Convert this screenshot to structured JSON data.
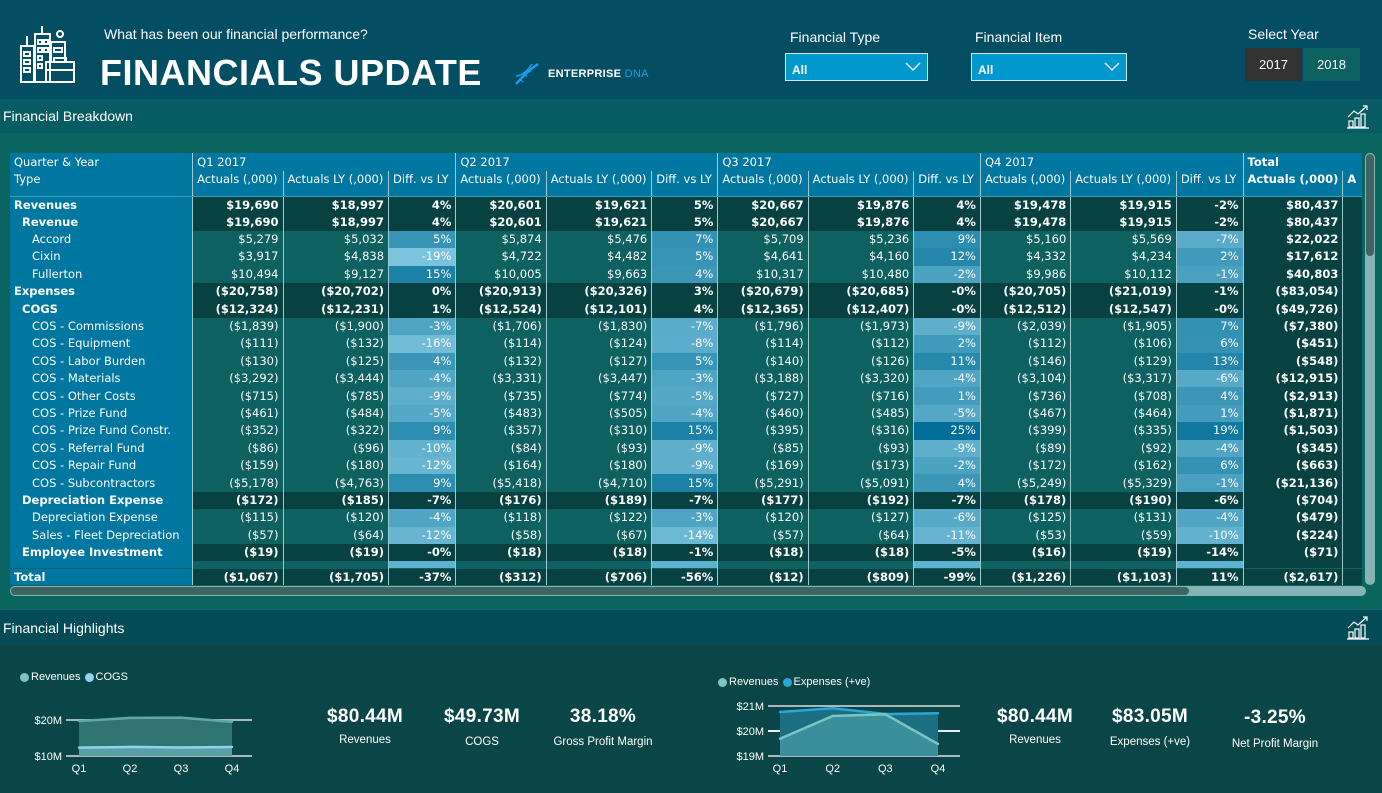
{
  "header": {
    "subtitle": "What has been our financial performance?",
    "title": "FINANCIALS UPDATE",
    "brand_main": "ENTERPRISE",
    "brand_accent": "DNA",
    "logo_icon": "city-buildings-briefcase-icon",
    "brand_icon": "dna-helix-icon"
  },
  "filters": {
    "financial_type": {
      "label": "Financial Type",
      "value": "All"
    },
    "financial_item": {
      "label": "Financial Item",
      "value": "All"
    },
    "year": {
      "label": "Select Year",
      "options": [
        "2017",
        "2018"
      ],
      "selected": "2017"
    }
  },
  "colors": {
    "header_bg": "#034e63",
    "section_bar": "#075b62",
    "table_header": "#0077a0",
    "bold_row": "#084142",
    "detail_row": "#0d6160",
    "selected_year": "#333333",
    "unselected_year": "#0d6160",
    "dropdown": "#0098cd",
    "revenues_series": "#7fc4c0",
    "cogs_series": "#8fd3ec",
    "expenses_series": "#29a8d8"
  },
  "breakdown": {
    "section_title": "Financial Breakdown",
    "row_header_top": "Quarter & Year",
    "row_header_bottom": "Type",
    "quarters": [
      "Q1 2017",
      "Q2 2017",
      "Q3 2017",
      "Q4 2017"
    ],
    "total_label": "Total",
    "measures": [
      "Actuals (,000)",
      "Actuals LY (,000)",
      "Diff. vs LY"
    ],
    "total_measure": "Actuals (,000)",
    "total_next_measure_partial": "A",
    "rows": [
      {
        "name": "Revenues",
        "level": 0,
        "q": [
          [
            "$19,690",
            "$18,997",
            "4%"
          ],
          [
            "$20,601",
            "$19,621",
            "5%"
          ],
          [
            "$20,667",
            "$19,876",
            "4%"
          ],
          [
            "$19,478",
            "$19,915",
            "-2%"
          ]
        ],
        "total": "$80,437"
      },
      {
        "name": "Revenue",
        "level": 1,
        "q": [
          [
            "$19,690",
            "$18,997",
            "4%"
          ],
          [
            "$20,601",
            "$19,621",
            "5%"
          ],
          [
            "$20,667",
            "$19,876",
            "4%"
          ],
          [
            "$19,478",
            "$19,915",
            "-2%"
          ]
        ],
        "total": "$80,437"
      },
      {
        "name": "Accord",
        "level": 2,
        "q": [
          [
            "$5,279",
            "$5,032",
            "5%"
          ],
          [
            "$5,874",
            "$5,476",
            "7%"
          ],
          [
            "$5,709",
            "$5,236",
            "9%"
          ],
          [
            "$5,160",
            "$5,569",
            "-7%"
          ]
        ],
        "total": "$22,022"
      },
      {
        "name": "Cixin",
        "level": 2,
        "q": [
          [
            "$3,917",
            "$4,838",
            "-19%"
          ],
          [
            "$4,722",
            "$4,482",
            "5%"
          ],
          [
            "$4,641",
            "$4,160",
            "12%"
          ],
          [
            "$4,332",
            "$4,234",
            "2%"
          ]
        ],
        "total": "$17,612"
      },
      {
        "name": "Fullerton",
        "level": 2,
        "q": [
          [
            "$10,494",
            "$9,127",
            "15%"
          ],
          [
            "$10,005",
            "$9,663",
            "4%"
          ],
          [
            "$10,317",
            "$10,480",
            "-2%"
          ],
          [
            "$9,986",
            "$10,112",
            "-1%"
          ]
        ],
        "total": "$40,803"
      },
      {
        "name": "Expenses",
        "level": 0,
        "q": [
          [
            "($20,758)",
            "($20,702)",
            "0%"
          ],
          [
            "($20,913)",
            "($20,326)",
            "3%"
          ],
          [
            "($20,679)",
            "($20,685)",
            "-0%"
          ],
          [
            "($20,705)",
            "($21,019)",
            "-1%"
          ]
        ],
        "total": "($83,054)"
      },
      {
        "name": "COGS",
        "level": 1,
        "q": [
          [
            "($12,324)",
            "($12,231)",
            "1%"
          ],
          [
            "($12,524)",
            "($12,101)",
            "4%"
          ],
          [
            "($12,365)",
            "($12,407)",
            "-0%"
          ],
          [
            "($12,512)",
            "($12,547)",
            "-0%"
          ]
        ],
        "total": "($49,726)"
      },
      {
        "name": "COS - Commissions",
        "level": 2,
        "q": [
          [
            "($1,839)",
            "($1,900)",
            "-3%"
          ],
          [
            "($1,706)",
            "($1,830)",
            "-7%"
          ],
          [
            "($1,796)",
            "($1,973)",
            "-9%"
          ],
          [
            "($2,039)",
            "($1,905)",
            "7%"
          ]
        ],
        "total": "($7,380)"
      },
      {
        "name": "COS - Equipment",
        "level": 2,
        "q": [
          [
            "($111)",
            "($132)",
            "-16%"
          ],
          [
            "($114)",
            "($124)",
            "-8%"
          ],
          [
            "($114)",
            "($112)",
            "2%"
          ],
          [
            "($112)",
            "($106)",
            "6%"
          ]
        ],
        "total": "($451)"
      },
      {
        "name": "COS - Labor Burden",
        "level": 2,
        "q": [
          [
            "($130)",
            "($125)",
            "4%"
          ],
          [
            "($132)",
            "($127)",
            "5%"
          ],
          [
            "($140)",
            "($126)",
            "11%"
          ],
          [
            "($146)",
            "($129)",
            "13%"
          ]
        ],
        "total": "($548)"
      },
      {
        "name": "COS - Materials",
        "level": 2,
        "q": [
          [
            "($3,292)",
            "($3,444)",
            "-4%"
          ],
          [
            "($3,331)",
            "($3,447)",
            "-3%"
          ],
          [
            "($3,188)",
            "($3,320)",
            "-4%"
          ],
          [
            "($3,104)",
            "($3,317)",
            "-6%"
          ]
        ],
        "total": "($12,915)"
      },
      {
        "name": "COS - Other Costs",
        "level": 2,
        "q": [
          [
            "($715)",
            "($785)",
            "-9%"
          ],
          [
            "($735)",
            "($774)",
            "-5%"
          ],
          [
            "($727)",
            "($716)",
            "1%"
          ],
          [
            "($736)",
            "($708)",
            "4%"
          ]
        ],
        "total": "($2,913)"
      },
      {
        "name": "COS - Prize Fund",
        "level": 2,
        "q": [
          [
            "($461)",
            "($484)",
            "-5%"
          ],
          [
            "($483)",
            "($505)",
            "-4%"
          ],
          [
            "($460)",
            "($485)",
            "-5%"
          ],
          [
            "($467)",
            "($464)",
            "1%"
          ]
        ],
        "total": "($1,871)"
      },
      {
        "name": "COS - Prize Fund Constr.",
        "level": 2,
        "q": [
          [
            "($352)",
            "($322)",
            "9%"
          ],
          [
            "($357)",
            "($310)",
            "15%"
          ],
          [
            "($395)",
            "($316)",
            "25%"
          ],
          [
            "($399)",
            "($335)",
            "19%"
          ]
        ],
        "total": "($1,503)"
      },
      {
        "name": "COS - Referral Fund",
        "level": 2,
        "q": [
          [
            "($86)",
            "($96)",
            "-10%"
          ],
          [
            "($84)",
            "($93)",
            "-9%"
          ],
          [
            "($85)",
            "($93)",
            "-9%"
          ],
          [
            "($89)",
            "($92)",
            "-4%"
          ]
        ],
        "total": "($345)"
      },
      {
        "name": "COS - Repair Fund",
        "level": 2,
        "q": [
          [
            "($159)",
            "($180)",
            "-12%"
          ],
          [
            "($164)",
            "($180)",
            "-9%"
          ],
          [
            "($169)",
            "($173)",
            "-2%"
          ],
          [
            "($172)",
            "($162)",
            "6%"
          ]
        ],
        "total": "($663)"
      },
      {
        "name": "COS - Subcontractors",
        "level": 2,
        "q": [
          [
            "($5,178)",
            "($4,763)",
            "9%"
          ],
          [
            "($5,418)",
            "($4,710)",
            "15%"
          ],
          [
            "($5,291)",
            "($5,091)",
            "4%"
          ],
          [
            "($5,249)",
            "($5,329)",
            "-1%"
          ]
        ],
        "total": "($21,136)"
      },
      {
        "name": "Depreciation Expense",
        "level": 1,
        "q": [
          [
            "($172)",
            "($185)",
            "-7%"
          ],
          [
            "($176)",
            "($189)",
            "-7%"
          ],
          [
            "($177)",
            "($192)",
            "-7%"
          ],
          [
            "($178)",
            "($190)",
            "-6%"
          ]
        ],
        "total": "($704)"
      },
      {
        "name": "Depreciation Expense",
        "level": 2,
        "q": [
          [
            "($115)",
            "($120)",
            "-4%"
          ],
          [
            "($118)",
            "($122)",
            "-3%"
          ],
          [
            "($120)",
            "($127)",
            "-6%"
          ],
          [
            "($125)",
            "($131)",
            "-4%"
          ]
        ],
        "total": "($479)"
      },
      {
        "name": "Sales - Fleet Depreciation",
        "level": 2,
        "q": [
          [
            "($57)",
            "($64)",
            "-12%"
          ],
          [
            "($58)",
            "($67)",
            "-14%"
          ],
          [
            "($57)",
            "($64)",
            "-11%"
          ],
          [
            "($53)",
            "($59)",
            "-10%"
          ]
        ],
        "total": "($224)"
      },
      {
        "name": "Employee Investment",
        "level": 1,
        "q": [
          [
            "($19)",
            "($19)",
            "-0%"
          ],
          [
            "($18)",
            "($18)",
            "-1%"
          ],
          [
            "($18)",
            "($18)",
            "-5%"
          ],
          [
            "($16)",
            "($19)",
            "-14%"
          ]
        ],
        "total": "($71)"
      }
    ],
    "total_row": {
      "name": "Total",
      "q": [
        [
          "($1,067)",
          "($1,705)",
          "-37%"
        ],
        [
          "($312)",
          "($706)",
          "-56%"
        ],
        [
          "($12)",
          "($809)",
          "-99%"
        ],
        [
          "($1,226)",
          "($1,103)",
          "11%"
        ]
      ],
      "total": "($2,617)"
    }
  },
  "highlights": {
    "section_title": "Financial Highlights",
    "kpis_left": [
      {
        "value": "$80.44M",
        "label": "Revenues"
      },
      {
        "value": "$49.73M",
        "label": "COGS"
      },
      {
        "value": "38.18%",
        "label": "Gross Profit Margin"
      }
    ],
    "kpis_right": [
      {
        "value": "$80.44M",
        "label": "Revenues"
      },
      {
        "value": "$83.05M",
        "label": "Expenses (+ve)"
      },
      {
        "value": "-3.25%",
        "label": "Net Profit Margin"
      }
    ]
  },
  "chart_data": [
    {
      "type": "area",
      "title": "",
      "categories": [
        "Q1",
        "Q2",
        "Q3",
        "Q4"
      ],
      "series": [
        {
          "name": "Revenues",
          "values": [
            19.69,
            20.6,
            20.67,
            19.48
          ]
        },
        {
          "name": "COGS",
          "values": [
            12.32,
            12.52,
            12.37,
            12.51
          ]
        }
      ],
      "yticks": [
        "$10M",
        "$20M"
      ],
      "ylim": [
        10,
        20
      ],
      "legend": "top-left",
      "unit": "$M"
    },
    {
      "type": "area",
      "title": "",
      "categories": [
        "Q1",
        "Q2",
        "Q3",
        "Q4"
      ],
      "series": [
        {
          "name": "Revenues",
          "values": [
            19.69,
            20.6,
            20.67,
            19.48
          ]
        },
        {
          "name": "Expenses (+ve)",
          "values": [
            20.76,
            20.91,
            20.68,
            20.71
          ]
        }
      ],
      "yticks": [
        "$19M",
        "$20M",
        "$21M"
      ],
      "ylim": [
        19,
        21
      ],
      "legend": "top-left",
      "unit": "$M"
    }
  ]
}
